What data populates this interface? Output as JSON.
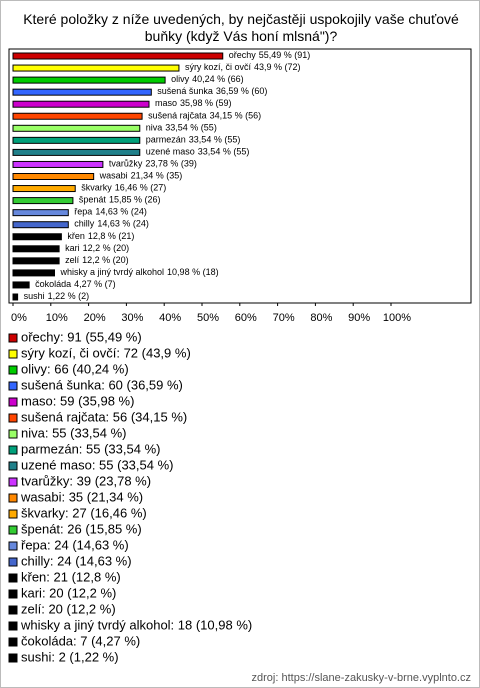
{
  "chart_data": {
    "type": "hbar",
    "title": "Které položky z níže uvedených, by nejčastěji uspokojily vaše chuťové buňky (když Vás honí mlsná\")?",
    "categories": [
      "ořechy",
      "sýry kozí, či ovčí",
      "olivy",
      "sušená šunka",
      "maso",
      "sušená rajčata",
      "niva",
      "parmezán",
      "uzené maso",
      "tvarůžky",
      "wasabi",
      "škvarky",
      "špenát",
      "řepa",
      "chilly",
      "křen",
      "kari",
      "zelí",
      "whisky a jiný tvrdý alkohol",
      "čokoláda",
      "sushi"
    ],
    "values": [
      55.49,
      43.9,
      40.24,
      36.59,
      35.98,
      34.15,
      33.54,
      33.54,
      33.54,
      23.78,
      21.34,
      16.46,
      15.85,
      14.63,
      14.63,
      12.8,
      12.2,
      12.2,
      10.98,
      4.27,
      1.22
    ],
    "value_labels": [
      "55,49 % (91)",
      "43,9 % (72)",
      "40,24 % (66)",
      "36,59 % (60)",
      "35,98 % (59)",
      "34,15 % (56)",
      "33,54 % (55)",
      "33,54 % (55)",
      "33,54 % (55)",
      "23,78 % (39)",
      "21,34 % (35)",
      "16,46 % (27)",
      "15,85 % (26)",
      "14,63 % (24)",
      "14,63 % (24)",
      "12,8 % (21)",
      "12,2 % (20)",
      "12,2 % (20)",
      "10,98 % (18)",
      "4,27 % (7)",
      "1,22 % (2)"
    ],
    "legend_labels": [
      "ořechy: 91 (55,49 %)",
      "sýry kozí, či ovčí: 72 (43,9 %)",
      "olivy: 66 (40,24 %)",
      "sušená šunka: 60 (36,59 %)",
      "maso: 59 (35,98 %)",
      "sušená rajčata: 56 (34,15 %)",
      "niva: 55 (33,54 %)",
      "parmezán: 55 (33,54 %)",
      "uzené maso: 55 (33,54 %)",
      "tvarůžky: 39 (23,78 %)",
      "wasabi: 35 (21,34 %)",
      "škvarky: 27 (16,46 %)",
      "špenát: 26 (15,85 %)",
      "řepa: 24 (14,63 %)",
      "chilly: 24 (14,63 %)",
      "křen: 21 (12,8 %)",
      "kari: 20 (12,2 %)",
      "zelí: 20 (12,2 %)",
      "whisky a jiný tvrdý alkohol: 18 (10,98 %)",
      "čokoláda: 7 (4,27 %)",
      "sushi: 2 (1,22 %)"
    ],
    "colors": [
      "#cc0000",
      "#ffff00",
      "#00cc00",
      "#3366ff",
      "#cc00cc",
      "#ff4500",
      "#99ff66",
      "#00a07a",
      "#20808a",
      "#cc33ff",
      "#ff8800",
      "#ffaa00",
      "#33cc33",
      "#6688dd",
      "#4466cc",
      "#000000",
      "#000000",
      "#000000",
      "#000000",
      "#000000",
      "#000000"
    ],
    "xlim": [
      0,
      100
    ],
    "xticks": [
      {
        "value": 0,
        "label": "0%"
      },
      {
        "value": 10,
        "label": "10%"
      },
      {
        "value": 20,
        "label": "20%"
      },
      {
        "value": 30,
        "label": "30%"
      },
      {
        "value": 40,
        "label": "40%"
      },
      {
        "value": 50,
        "label": "50%"
      },
      {
        "value": 60,
        "label": "60%"
      },
      {
        "value": 70,
        "label": "70%"
      },
      {
        "value": 80,
        "label": "80%"
      },
      {
        "value": 90,
        "label": "90%"
      },
      {
        "value": 100,
        "label": "100%"
      }
    ],
    "legend": "bottom",
    "source": "zdroj: https://slane-zakusky-v-brne.vyplnto.cz"
  }
}
